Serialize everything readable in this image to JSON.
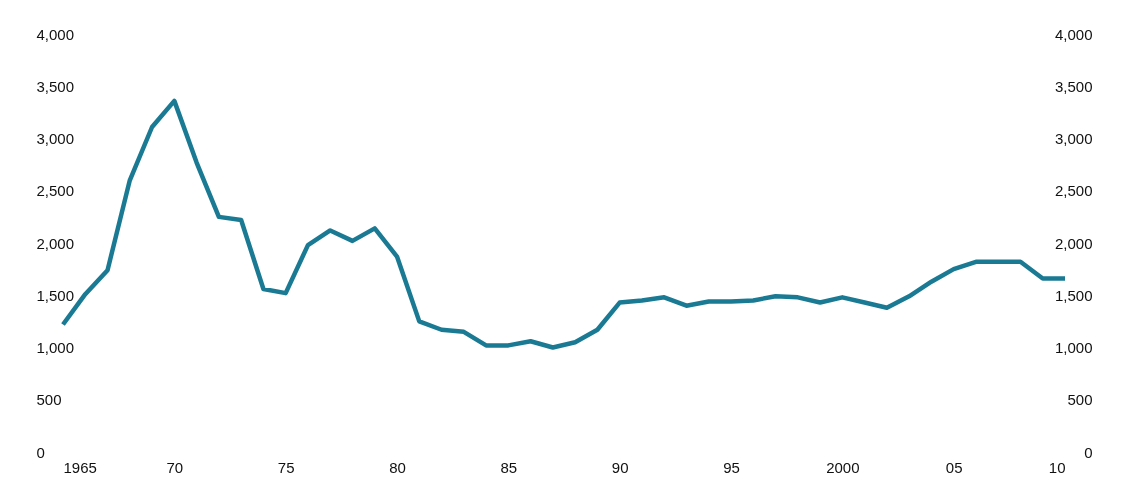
{
  "chart_data": {
    "type": "line",
    "x": [
      1965,
      1966,
      1967,
      1968,
      1969,
      1970,
      1971,
      1972,
      1973,
      1974,
      1975,
      1976,
      1977,
      1978,
      1979,
      1980,
      1981,
      1982,
      1983,
      1984,
      1985,
      1986,
      1987,
      1988,
      1989,
      1990,
      1991,
      1992,
      1993,
      1994,
      1995,
      1996,
      1997,
      1998,
      1999,
      2000,
      2001,
      2002,
      2003,
      2004,
      2005,
      2006,
      2007,
      2008,
      2009,
      2010
    ],
    "series": [
      {
        "color": "#1a7a94",
        "values": [
          1220,
          1510,
          1740,
          2600,
          3110,
          3360,
          2770,
          2250,
          2220,
          1560,
          1520,
          1980,
          2120,
          2020,
          2140,
          1870,
          1250,
          1170,
          1150,
          1020,
          1020,
          1060,
          1000,
          1050,
          1170,
          1430,
          1450,
          1480,
          1400,
          1440,
          1440,
          1450,
          1490,
          1480,
          1430,
          1480,
          1430,
          1380,
          1490,
          1630,
          1750,
          1820,
          1820,
          1820,
          1660,
          1660
        ]
      }
    ],
    "xlim": [
      1965,
      2010
    ],
    "xticks": [
      1965,
      {
        "value": 1970,
        "label": "70"
      },
      {
        "value": 1975,
        "label": "75"
      },
      {
        "value": 1980,
        "label": "80"
      },
      {
        "value": 1985,
        "label": "85"
      },
      {
        "value": 1990,
        "label": "90"
      },
      {
        "value": 1995,
        "label": "95"
      },
      2000,
      {
        "value": 2005,
        "label": "05"
      },
      {
        "value": 2010,
        "label": "10"
      }
    ],
    "ylim": [
      0,
      4000
    ],
    "yticks": [
      0,
      {
        "value": 500,
        "label": "500"
      },
      {
        "value": 1000,
        "label": "1,000"
      },
      {
        "value": 1500,
        "label": "1,500"
      },
      {
        "value": 2000,
        "label": "2,000"
      },
      {
        "value": 2500,
        "label": "2,500"
      },
      {
        "value": 3000,
        "label": "3,000"
      },
      {
        "value": 3500,
        "label": "3,500"
      },
      {
        "value": 4000,
        "label": "4,000"
      }
    ],
    "y2lim": [
      0,
      4000
    ],
    "y2ticks": [
      0,
      {
        "value": 500,
        "label": "500"
      },
      {
        "value": 1000,
        "label": "1,000"
      },
      {
        "value": 1500,
        "label": "1,500"
      },
      {
        "value": 2000,
        "label": "2,000"
      },
      {
        "value": 2500,
        "label": "2,500"
      },
      {
        "value": 3000,
        "label": "3,000"
      },
      {
        "value": 3500,
        "label": "3,500"
      },
      {
        "value": 4000,
        "label": "4,000"
      }
    ],
    "grid": false,
    "line_style": "solid"
  }
}
